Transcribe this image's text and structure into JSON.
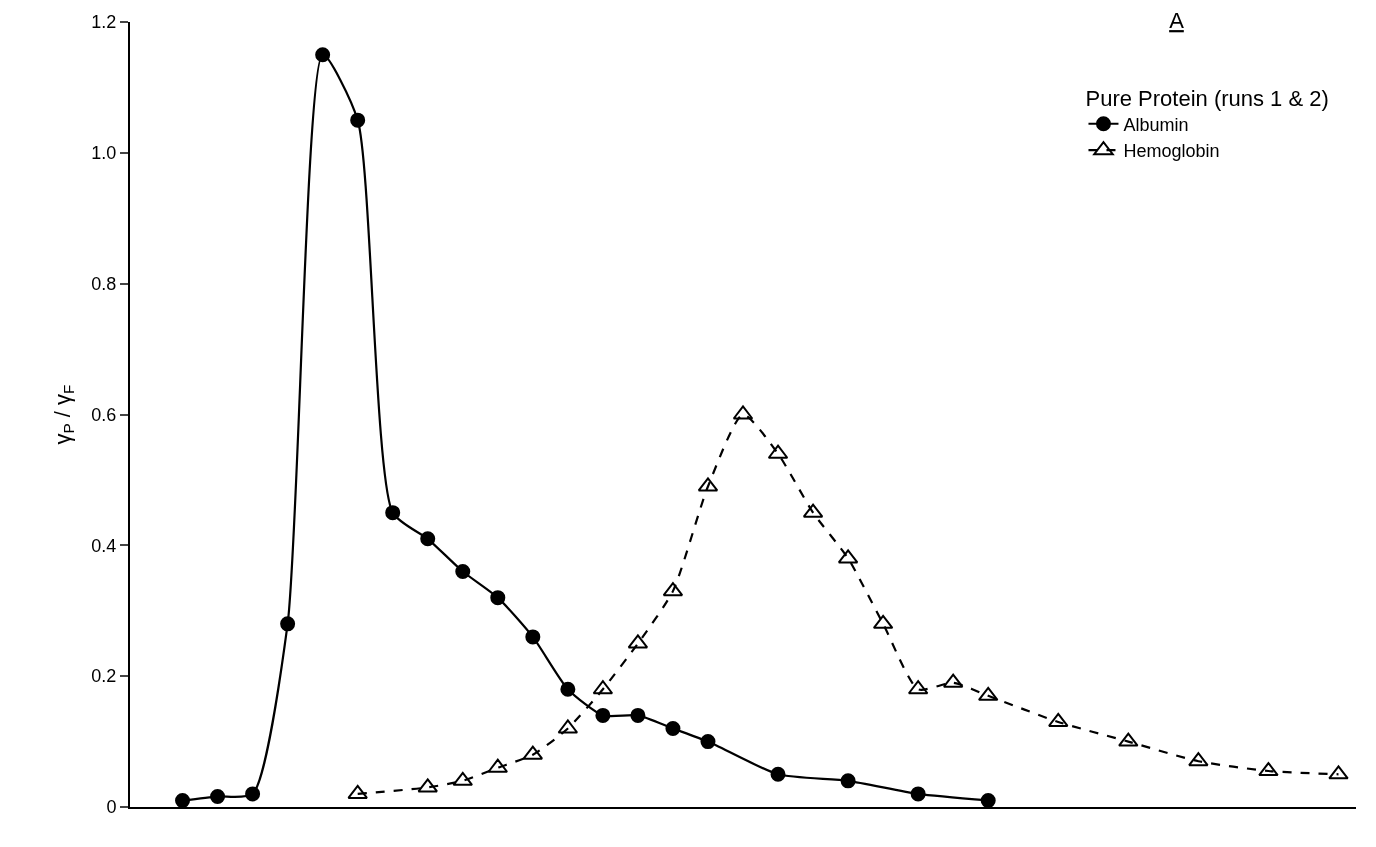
{
  "chart_data": {
    "type": "line",
    "title": "A",
    "legend_title": "Pure Protein (runs 1 & 2)",
    "ylabel": "γ$_{P}$ / γ$_{F}$",
    "categories": [
      null,
      null,
      null,
      null,
      null,
      null,
      null,
      null,
      null,
      null,
      null,
      null,
      null,
      null,
      null,
      null,
      null,
      null,
      null,
      null,
      null,
      null,
      null,
      null,
      null,
      null,
      null,
      null,
      null,
      null,
      null,
      null,
      null,
      null
    ],
    "series": [
      {
        "name": "Albumin",
        "color": "#000000",
        "marker": "circle",
        "line_style": "solid",
        "values": [
          0.01,
          0.016,
          0.02,
          0.28,
          1.15,
          1.05,
          0.45,
          0.41,
          0.36,
          0.32,
          0.26,
          0.18,
          0.14,
          0.14,
          0.12,
          0.1,
          null,
          0.05,
          null,
          0.04,
          null,
          0.02,
          null,
          0.01,
          null,
          null,
          null,
          null,
          null,
          null,
          null,
          null,
          null,
          null
        ]
      },
      {
        "name": "Hemoglobin",
        "color": "#000000",
        "marker": "triangle",
        "line_style": "dashed",
        "values": [
          null,
          null,
          null,
          null,
          null,
          0.02,
          null,
          0.03,
          0.04,
          0.06,
          0.08,
          0.12,
          0.18,
          0.25,
          0.33,
          0.49,
          0.6,
          0.54,
          0.45,
          0.38,
          0.28,
          0.18,
          0.19,
          0.17,
          null,
          0.13,
          null,
          0.1,
          null,
          0.07,
          null,
          0.055,
          null,
          0.05
        ]
      }
    ],
    "ylim": [
      0,
      1.2
    ],
    "yticks": [
      {
        "value": 0,
        "label": "0"
      },
      0.2,
      0.4,
      0.6,
      0.8,
      {
        "value": 1,
        "label": "1.0"
      },
      1.2
    ],
    "legend": "top right"
  }
}
